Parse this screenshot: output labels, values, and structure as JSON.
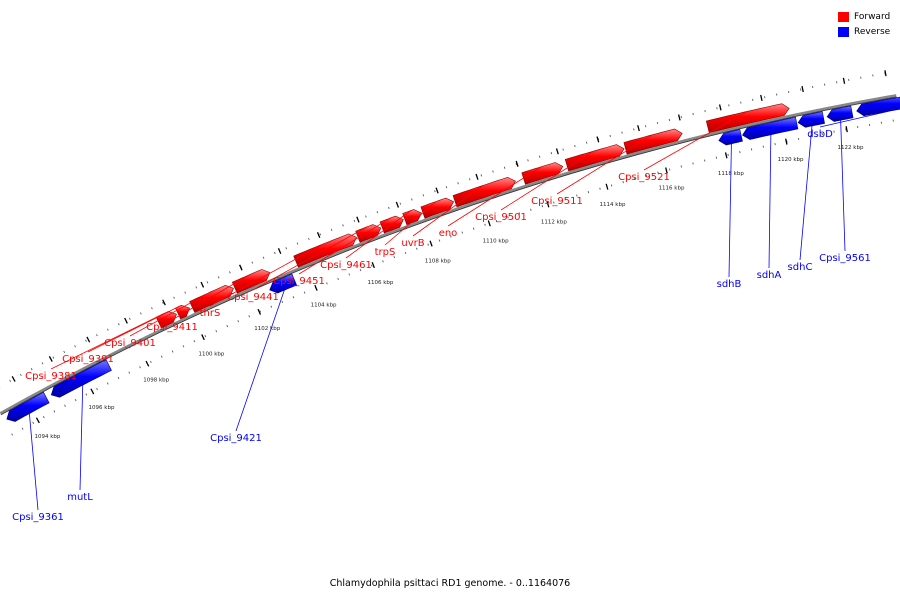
{
  "caption": "Chlamydophila psittaci RD1 genome. - 0..1164076",
  "legend": [
    {
      "label": "Forward",
      "color": "#ff0000"
    },
    {
      "label": "Reverse",
      "color": "#0000ff"
    }
  ],
  "ticks": [
    "1094 kbp",
    "1096 kbp",
    "1098 kbp",
    "1100 kbp",
    "1102 kbp",
    "1104 kbp",
    "1106 kbp",
    "1108 kbp",
    "1110 kbp",
    "1112 kbp",
    "1114 kbp",
    "1116 kbp",
    "1118 kbp",
    "1120 kbp",
    "1122 kbp"
  ],
  "genes": [
    {
      "name": "Cpsi_9361",
      "strand": "reverse"
    },
    {
      "name": "mutL",
      "strand": "reverse"
    },
    {
      "name": "Cpsi_9381",
      "strand": "forward"
    },
    {
      "name": "Cpsi_9391",
      "strand": "forward"
    },
    {
      "name": "Cpsi_9401",
      "strand": "forward"
    },
    {
      "name": "Cpsi_9411",
      "strand": "forward"
    },
    {
      "name": "thrS",
      "strand": "forward"
    },
    {
      "name": "Cpsi_9421",
      "strand": "reverse"
    },
    {
      "name": "Cpsi_9441",
      "strand": "forward"
    },
    {
      "name": "Cpsi_9451",
      "strand": "forward"
    },
    {
      "name": "Cpsi_9461",
      "strand": "forward"
    },
    {
      "name": "trpS",
      "strand": "forward"
    },
    {
      "name": "uvrB",
      "strand": "forward"
    },
    {
      "name": "eno",
      "strand": "forward"
    },
    {
      "name": "Cpsi_9501",
      "strand": "forward"
    },
    {
      "name": "Cpsi_9511",
      "strand": "forward"
    },
    {
      "name": "Cpsi_9521",
      "strand": "forward"
    },
    {
      "name": "sdhB",
      "strand": "reverse"
    },
    {
      "name": "sdhA",
      "strand": "reverse"
    },
    {
      "name": "sdhC",
      "strand": "reverse"
    },
    {
      "name": "Cpsi_9561",
      "strand": "reverse"
    },
    {
      "name": "dsbD",
      "strand": "reverse"
    }
  ]
}
